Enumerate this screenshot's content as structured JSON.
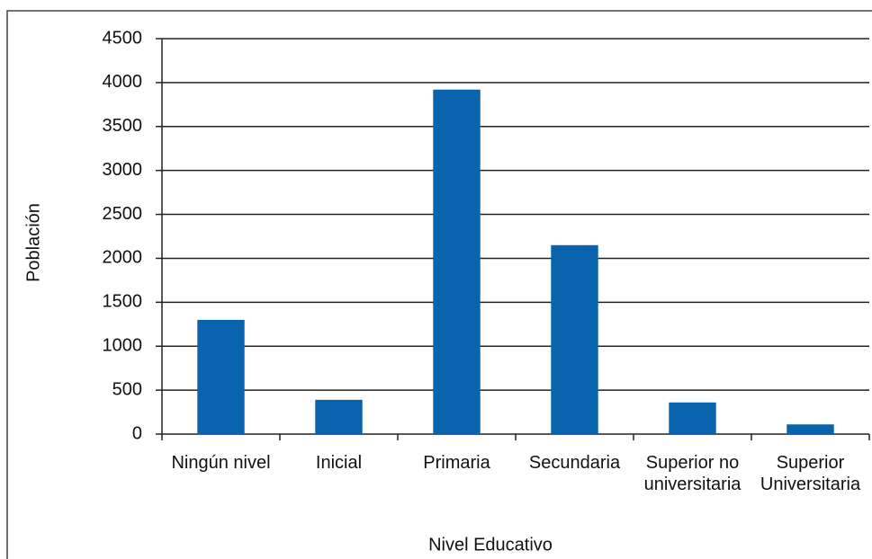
{
  "chart_data": {
    "type": "bar",
    "x_label": "Nivel Educativo",
    "y_label": "Población",
    "categories": [
      "Ningún nivel",
      "Inicial",
      "Primaria",
      "Secundaria",
      "Superior no universitaria",
      "Superior Universitaria"
    ],
    "values": [
      1300,
      390,
      3920,
      2150,
      360,
      110
    ],
    "color": "#0a64ad",
    "ylim": [
      0,
      4500
    ],
    "yticks": [
      0,
      500,
      1000,
      1500,
      2000,
      2500,
      3000,
      3500,
      4000,
      4500
    ],
    "grid": true
  }
}
